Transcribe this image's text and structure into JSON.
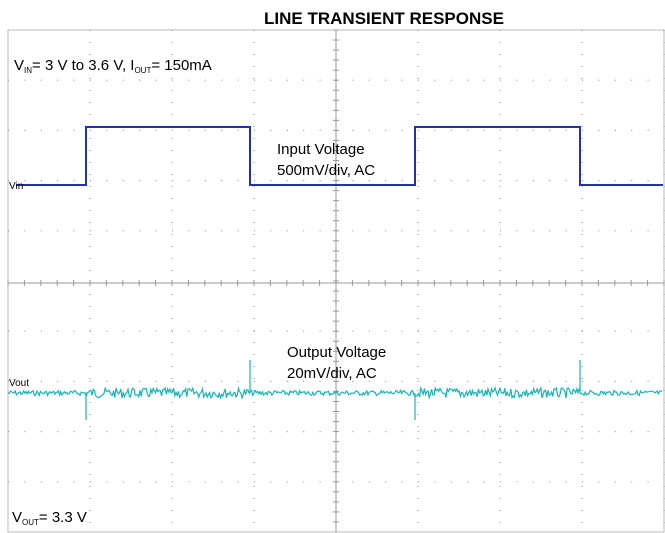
{
  "title": "LINE TRANSIENT RESPONSE",
  "conditions": {
    "v": "V",
    "v_sub": "IN",
    "mid": "= 3 V to  3.6 V,  I",
    "i_sub": "OUT",
    "end": "= 150mA"
  },
  "channels": [
    {
      "marker": "Vin",
      "name": "Input Voltage",
      "scale": "500mV/div, AC"
    },
    {
      "marker": "Vout",
      "name": "Output Voltage",
      "scale": "20mV/div, AC"
    }
  ],
  "vout": {
    "v": "V",
    "sub": "OUT",
    "rest": "= 3.3 V"
  }
}
